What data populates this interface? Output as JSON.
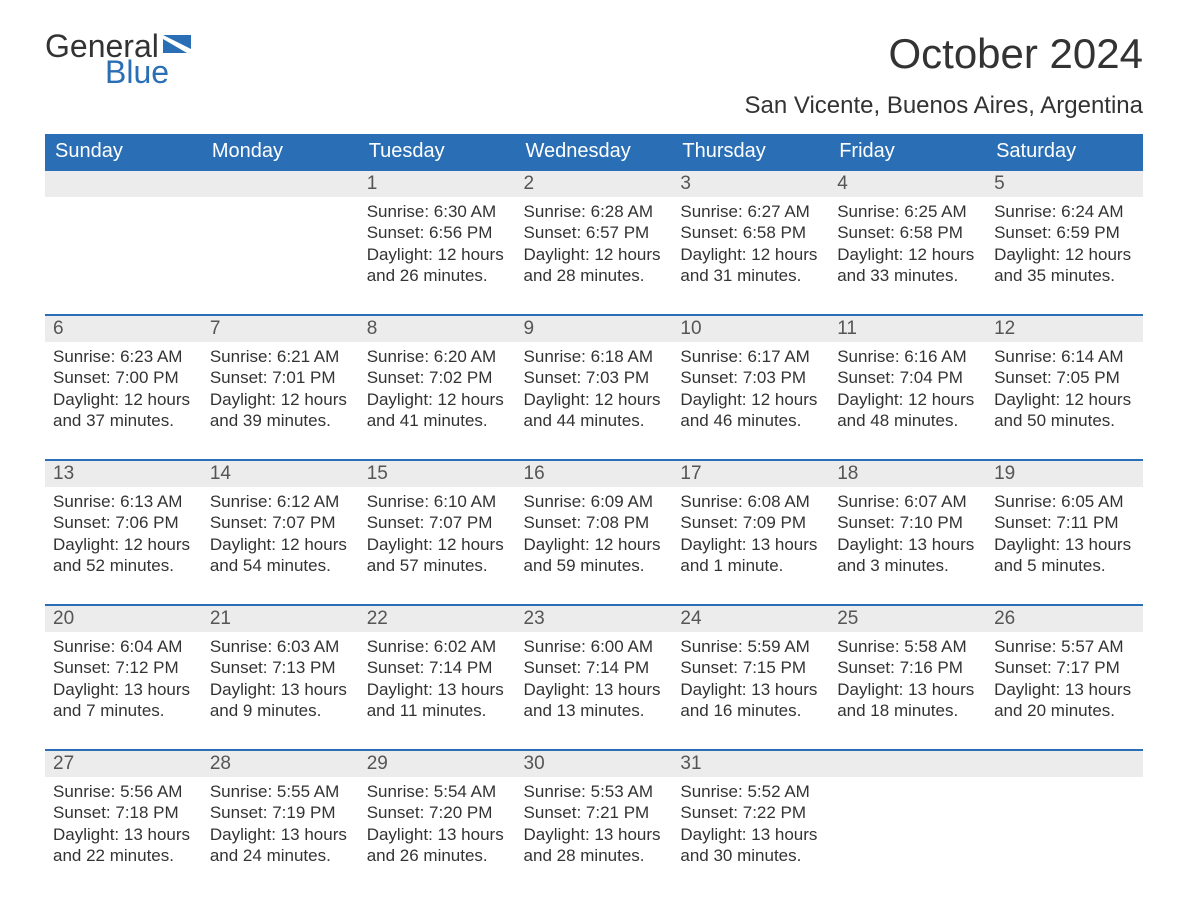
{
  "logo": {
    "text_general": "General",
    "text_blue": "Blue",
    "flag_color": "#2a6fb5"
  },
  "title": "October 2024",
  "subtitle": "San Vicente, Buenos Aires, Argentina",
  "colors": {
    "header_bg": "#2a6fb5",
    "header_text": "#ffffff",
    "daynum_bg": "#ececec",
    "daynum_border": "#2a6fb5",
    "body_bg": "#ffffff",
    "text": "#333333"
  },
  "day_headers": [
    "Sunday",
    "Monday",
    "Tuesday",
    "Wednesday",
    "Thursday",
    "Friday",
    "Saturday"
  ],
  "weeks": [
    [
      {
        "num": "",
        "sunrise": "",
        "sunset": "",
        "daylight1": "",
        "daylight2": ""
      },
      {
        "num": "",
        "sunrise": "",
        "sunset": "",
        "daylight1": "",
        "daylight2": ""
      },
      {
        "num": "1",
        "sunrise": "Sunrise: 6:30 AM",
        "sunset": "Sunset: 6:56 PM",
        "daylight1": "Daylight: 12 hours",
        "daylight2": "and 26 minutes."
      },
      {
        "num": "2",
        "sunrise": "Sunrise: 6:28 AM",
        "sunset": "Sunset: 6:57 PM",
        "daylight1": "Daylight: 12 hours",
        "daylight2": "and 28 minutes."
      },
      {
        "num": "3",
        "sunrise": "Sunrise: 6:27 AM",
        "sunset": "Sunset: 6:58 PM",
        "daylight1": "Daylight: 12 hours",
        "daylight2": "and 31 minutes."
      },
      {
        "num": "4",
        "sunrise": "Sunrise: 6:25 AM",
        "sunset": "Sunset: 6:58 PM",
        "daylight1": "Daylight: 12 hours",
        "daylight2": "and 33 minutes."
      },
      {
        "num": "5",
        "sunrise": "Sunrise: 6:24 AM",
        "sunset": "Sunset: 6:59 PM",
        "daylight1": "Daylight: 12 hours",
        "daylight2": "and 35 minutes."
      }
    ],
    [
      {
        "num": "6",
        "sunrise": "Sunrise: 6:23 AM",
        "sunset": "Sunset: 7:00 PM",
        "daylight1": "Daylight: 12 hours",
        "daylight2": "and 37 minutes."
      },
      {
        "num": "7",
        "sunrise": "Sunrise: 6:21 AM",
        "sunset": "Sunset: 7:01 PM",
        "daylight1": "Daylight: 12 hours",
        "daylight2": "and 39 minutes."
      },
      {
        "num": "8",
        "sunrise": "Sunrise: 6:20 AM",
        "sunset": "Sunset: 7:02 PM",
        "daylight1": "Daylight: 12 hours",
        "daylight2": "and 41 minutes."
      },
      {
        "num": "9",
        "sunrise": "Sunrise: 6:18 AM",
        "sunset": "Sunset: 7:03 PM",
        "daylight1": "Daylight: 12 hours",
        "daylight2": "and 44 minutes."
      },
      {
        "num": "10",
        "sunrise": "Sunrise: 6:17 AM",
        "sunset": "Sunset: 7:03 PM",
        "daylight1": "Daylight: 12 hours",
        "daylight2": "and 46 minutes."
      },
      {
        "num": "11",
        "sunrise": "Sunrise: 6:16 AM",
        "sunset": "Sunset: 7:04 PM",
        "daylight1": "Daylight: 12 hours",
        "daylight2": "and 48 minutes."
      },
      {
        "num": "12",
        "sunrise": "Sunrise: 6:14 AM",
        "sunset": "Sunset: 7:05 PM",
        "daylight1": "Daylight: 12 hours",
        "daylight2": "and 50 minutes."
      }
    ],
    [
      {
        "num": "13",
        "sunrise": "Sunrise: 6:13 AM",
        "sunset": "Sunset: 7:06 PM",
        "daylight1": "Daylight: 12 hours",
        "daylight2": "and 52 minutes."
      },
      {
        "num": "14",
        "sunrise": "Sunrise: 6:12 AM",
        "sunset": "Sunset: 7:07 PM",
        "daylight1": "Daylight: 12 hours",
        "daylight2": "and 54 minutes."
      },
      {
        "num": "15",
        "sunrise": "Sunrise: 6:10 AM",
        "sunset": "Sunset: 7:07 PM",
        "daylight1": "Daylight: 12 hours",
        "daylight2": "and 57 minutes."
      },
      {
        "num": "16",
        "sunrise": "Sunrise: 6:09 AM",
        "sunset": "Sunset: 7:08 PM",
        "daylight1": "Daylight: 12 hours",
        "daylight2": "and 59 minutes."
      },
      {
        "num": "17",
        "sunrise": "Sunrise: 6:08 AM",
        "sunset": "Sunset: 7:09 PM",
        "daylight1": "Daylight: 13 hours",
        "daylight2": "and 1 minute."
      },
      {
        "num": "18",
        "sunrise": "Sunrise: 6:07 AM",
        "sunset": "Sunset: 7:10 PM",
        "daylight1": "Daylight: 13 hours",
        "daylight2": "and 3 minutes."
      },
      {
        "num": "19",
        "sunrise": "Sunrise: 6:05 AM",
        "sunset": "Sunset: 7:11 PM",
        "daylight1": "Daylight: 13 hours",
        "daylight2": "and 5 minutes."
      }
    ],
    [
      {
        "num": "20",
        "sunrise": "Sunrise: 6:04 AM",
        "sunset": "Sunset: 7:12 PM",
        "daylight1": "Daylight: 13 hours",
        "daylight2": "and 7 minutes."
      },
      {
        "num": "21",
        "sunrise": "Sunrise: 6:03 AM",
        "sunset": "Sunset: 7:13 PM",
        "daylight1": "Daylight: 13 hours",
        "daylight2": "and 9 minutes."
      },
      {
        "num": "22",
        "sunrise": "Sunrise: 6:02 AM",
        "sunset": "Sunset: 7:14 PM",
        "daylight1": "Daylight: 13 hours",
        "daylight2": "and 11 minutes."
      },
      {
        "num": "23",
        "sunrise": "Sunrise: 6:00 AM",
        "sunset": "Sunset: 7:14 PM",
        "daylight1": "Daylight: 13 hours",
        "daylight2": "and 13 minutes."
      },
      {
        "num": "24",
        "sunrise": "Sunrise: 5:59 AM",
        "sunset": "Sunset: 7:15 PM",
        "daylight1": "Daylight: 13 hours",
        "daylight2": "and 16 minutes."
      },
      {
        "num": "25",
        "sunrise": "Sunrise: 5:58 AM",
        "sunset": "Sunset: 7:16 PM",
        "daylight1": "Daylight: 13 hours",
        "daylight2": "and 18 minutes."
      },
      {
        "num": "26",
        "sunrise": "Sunrise: 5:57 AM",
        "sunset": "Sunset: 7:17 PM",
        "daylight1": "Daylight: 13 hours",
        "daylight2": "and 20 minutes."
      }
    ],
    [
      {
        "num": "27",
        "sunrise": "Sunrise: 5:56 AM",
        "sunset": "Sunset: 7:18 PM",
        "daylight1": "Daylight: 13 hours",
        "daylight2": "and 22 minutes."
      },
      {
        "num": "28",
        "sunrise": "Sunrise: 5:55 AM",
        "sunset": "Sunset: 7:19 PM",
        "daylight1": "Daylight: 13 hours",
        "daylight2": "and 24 minutes."
      },
      {
        "num": "29",
        "sunrise": "Sunrise: 5:54 AM",
        "sunset": "Sunset: 7:20 PM",
        "daylight1": "Daylight: 13 hours",
        "daylight2": "and 26 minutes."
      },
      {
        "num": "30",
        "sunrise": "Sunrise: 5:53 AM",
        "sunset": "Sunset: 7:21 PM",
        "daylight1": "Daylight: 13 hours",
        "daylight2": "and 28 minutes."
      },
      {
        "num": "31",
        "sunrise": "Sunrise: 5:52 AM",
        "sunset": "Sunset: 7:22 PM",
        "daylight1": "Daylight: 13 hours",
        "daylight2": "and 30 minutes."
      },
      {
        "num": "",
        "sunrise": "",
        "sunset": "",
        "daylight1": "",
        "daylight2": ""
      },
      {
        "num": "",
        "sunrise": "",
        "sunset": "",
        "daylight1": "",
        "daylight2": ""
      }
    ]
  ]
}
